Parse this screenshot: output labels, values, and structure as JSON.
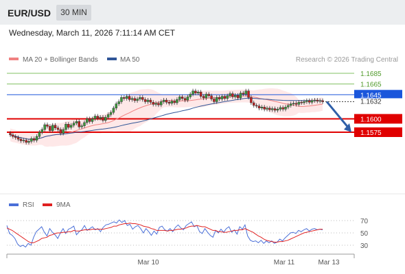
{
  "header": {
    "symbol": "EUR/USD",
    "timeframe": "30 MIN",
    "datetime": "Wednesday, March 11, 2026 7:11:14 AM CET"
  },
  "legend": {
    "ma20_label": "MA 20 + Bollinger Bands",
    "ma50_label": "MA 50",
    "ma20_color": "#f08080",
    "ma50_color": "#2f5597",
    "source": "Research © 2026 Trading Central"
  },
  "rsi_legend": {
    "rsi_label": "RSI",
    "ma9_label": "9MA",
    "rsi_color": "#4a6fd8",
    "ma9_color": "#e02020"
  },
  "chart_data": [
    {
      "type": "candlestick",
      "x_ticks": [
        "Mar 10",
        "Mar 11",
        "Mar 13"
      ],
      "y_range": [
        1.152,
        1.1705
      ],
      "levels": [
        {
          "value": 1.1685,
          "label": "1.1685",
          "color": "#80c060",
          "kind": "resistance"
        },
        {
          "value": 1.1665,
          "label": "1.1665",
          "color": "#80c060",
          "kind": "resistance"
        },
        {
          "value": 1.1645,
          "label": "1.1645",
          "color": "#1a56db",
          "kind": "pivot"
        },
        {
          "value": 1.16,
          "label": "1.1600",
          "color": "#e00000",
          "kind": "support"
        },
        {
          "value": 1.1575,
          "label": "1.1575",
          "color": "#e00000",
          "kind": "support"
        }
      ],
      "last_price": {
        "value": 1.1632,
        "label": "1.1632"
      },
      "forecast": {
        "from": 1.1632,
        "to": 1.1575,
        "color": "#2f5fa8"
      },
      "closes": [
        1.157,
        1.1567,
        1.1565,
        1.1562,
        1.1559,
        1.156,
        1.1556,
        1.1558,
        1.1563,
        1.156,
        1.1567,
        1.1575,
        1.158,
        1.1589,
        1.1586,
        1.1578,
        1.1588,
        1.1583,
        1.158,
        1.1573,
        1.158,
        1.159,
        1.1584,
        1.1588,
        1.1592,
        1.1595,
        1.1585,
        1.1587,
        1.1593,
        1.16,
        1.1595,
        1.16,
        1.1605,
        1.1601,
        1.1603,
        1.1597,
        1.1603,
        1.1608,
        1.1612,
        1.162,
        1.1628,
        1.1632,
        1.164,
        1.1638,
        1.1642,
        1.1636,
        1.1638,
        1.1634,
        1.1637,
        1.164,
        1.1636,
        1.1632,
        1.1635,
        1.1631,
        1.1627,
        1.1629,
        1.1626,
        1.1632,
        1.1635,
        1.1631,
        1.1629,
        1.1633,
        1.163,
        1.1636,
        1.1641,
        1.1638,
        1.1635,
        1.1641,
        1.1646,
        1.1652,
        1.1648,
        1.165,
        1.1642,
        1.1639,
        1.1646,
        1.1643,
        1.1637,
        1.1632,
        1.164,
        1.1637,
        1.1642,
        1.1638,
        1.1643,
        1.1647,
        1.1641,
        1.1644,
        1.1639,
        1.1648,
        1.1646,
        1.1652,
        1.164,
        1.163,
        1.1625,
        1.1624,
        1.162,
        1.1622,
        1.1618,
        1.162,
        1.1617,
        1.1619,
        1.1616,
        1.1618,
        1.1621,
        1.1618,
        1.1622,
        1.1625,
        1.1628,
        1.1629,
        1.1627,
        1.1631,
        1.163,
        1.1632,
        1.1634,
        1.1631,
        1.1634,
        1.1635,
        1.1633,
        1.1634,
        1.1632
      ]
    },
    {
      "type": "line",
      "name": "RSI",
      "y_ticks": [
        70,
        50,
        30
      ],
      "y_range": [
        20,
        80
      ],
      "series": [
        {
          "name": "RSI",
          "values": [
            62,
            49,
            46,
            41,
            32,
            28,
            30,
            27,
            33,
            30,
            43,
            52,
            56,
            60,
            51,
            45,
            57,
            51,
            47,
            41,
            50,
            57,
            49,
            56,
            58,
            61,
            47,
            52,
            55,
            62,
            54,
            57,
            60,
            55,
            57,
            52,
            59,
            63,
            64,
            66,
            68,
            66,
            71,
            67,
            70,
            62,
            64,
            56,
            60,
            62,
            57,
            50,
            57,
            52,
            46,
            53,
            48,
            59,
            61,
            55,
            53,
            57,
            52,
            59,
            63,
            58,
            55,
            62,
            65,
            68,
            60,
            62,
            52,
            49,
            57,
            51,
            46,
            43,
            54,
            50,
            56,
            51,
            57,
            60,
            51,
            55,
            48,
            60,
            56,
            63,
            45,
            38,
            36,
            37,
            34,
            38,
            33,
            37,
            34,
            37,
            33,
            35,
            40,
            37,
            42,
            46,
            50,
            51,
            49,
            54,
            52,
            55,
            57,
            53,
            56,
            57,
            55,
            56,
            55
          ]
        },
        {
          "name": "9MA",
          "values": [
            58,
            56,
            54,
            51,
            48,
            45,
            42,
            39,
            36,
            34,
            34,
            36,
            38,
            41,
            42,
            43,
            46,
            47,
            49,
            50,
            50,
            51,
            51,
            52,
            52,
            54,
            53,
            53,
            54,
            55,
            55,
            55,
            56,
            56,
            56,
            56,
            56,
            57,
            58,
            59,
            61,
            61,
            63,
            64,
            65,
            65,
            66,
            65,
            65,
            64,
            63,
            61,
            60,
            59,
            57,
            56,
            54,
            54,
            54,
            54,
            53,
            54,
            54,
            55,
            56,
            56,
            57,
            58,
            60,
            61,
            61,
            62,
            61,
            60,
            60,
            58,
            56,
            54,
            54,
            52,
            52,
            51,
            51,
            52,
            53,
            54,
            54,
            55,
            55,
            57,
            55,
            53,
            51,
            48,
            45,
            43,
            40,
            38,
            37,
            36,
            35,
            35,
            36,
            36,
            37,
            38,
            40,
            42,
            44,
            46,
            48,
            50,
            51,
            52,
            53,
            54,
            55,
            56,
            56
          ]
        }
      ]
    }
  ]
}
